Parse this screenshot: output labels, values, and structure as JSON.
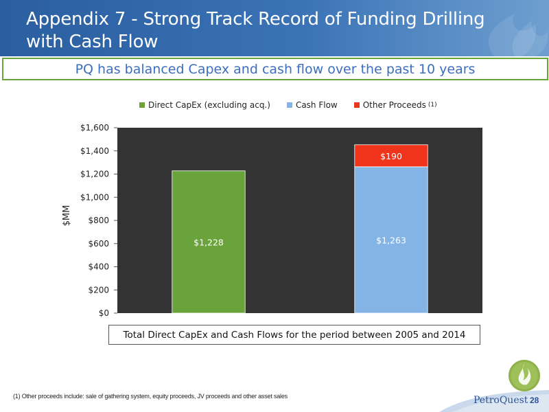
{
  "header": {
    "title": "Appendix 7 - Strong Track Record of Funding Drilling with Cash Flow",
    "subtitle": "PQ has balanced Capex and cash flow over the past 10 years"
  },
  "legend": {
    "items": [
      {
        "label": "Direct CapEx (excluding acq.)",
        "color": "#6aa33b"
      },
      {
        "label": "Cash Flow",
        "color": "#84b4e6"
      },
      {
        "label": "Other Proceeds",
        "color": "#f0341c",
        "sup": "(1)"
      }
    ]
  },
  "chart_data": {
    "type": "bar",
    "stacked": true,
    "ylabel": "$MM",
    "ylim": [
      0,
      1600
    ],
    "yticks": [
      0,
      200,
      400,
      600,
      800,
      1000,
      1200,
      1400,
      1600
    ],
    "ytick_labels": [
      "$0",
      "$200",
      "$400",
      "$600",
      "$800",
      "$1,000",
      "$1,200",
      "$1,400",
      "$1,600"
    ],
    "bars": [
      {
        "segments": [
          {
            "series": "Direct CapEx (excluding acq.)",
            "value": 1228,
            "label": "$1,228",
            "color": "#6aa33b",
            "label_color": "#ffffff"
          }
        ]
      },
      {
        "segments": [
          {
            "series": "Cash Flow",
            "value": 1263,
            "label": "$1,263",
            "color": "#84b4e6",
            "label_color": "#ffffff"
          },
          {
            "series": "Other Proceeds",
            "value": 190,
            "label": "$190",
            "color": "#f0341c",
            "label_color": "#ffffff"
          }
        ]
      }
    ],
    "grid": false,
    "legend_position": "top",
    "caption": "Total Direct CapEx and Cash Flows for the period between 2005 and 2014"
  },
  "footnote": "(1) Other proceeds include: sale of gathering system, equity proceeds, JV proceeds and other asset sales",
  "footer": {
    "brand": "PetroQuest",
    "page": "28"
  }
}
